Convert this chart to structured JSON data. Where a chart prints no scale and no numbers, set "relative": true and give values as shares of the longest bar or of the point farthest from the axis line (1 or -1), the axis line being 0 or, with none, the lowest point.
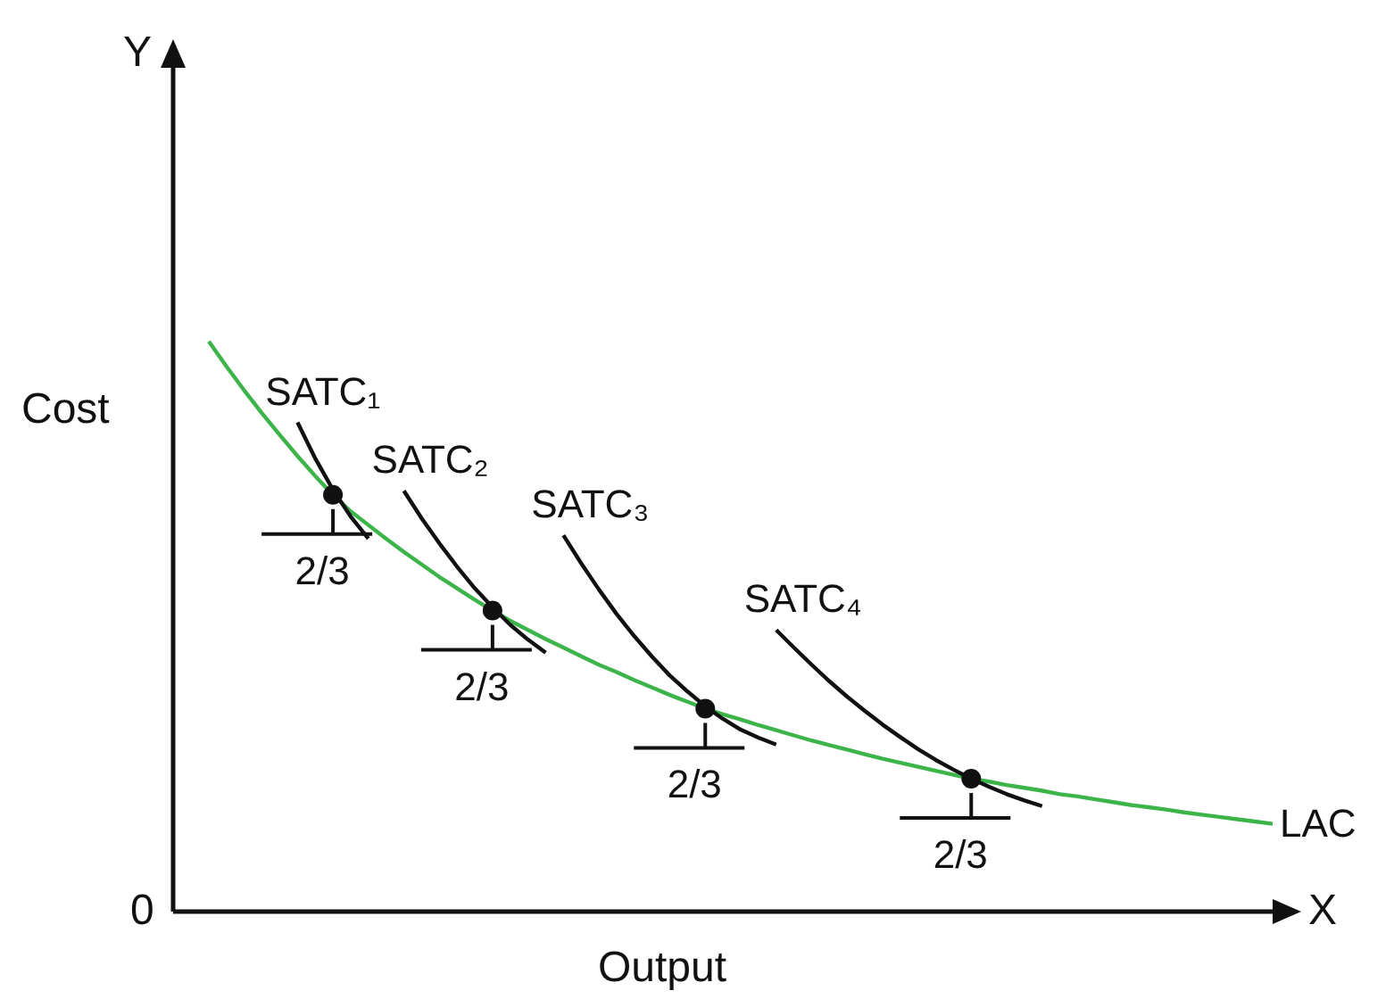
{
  "chart_data": {
    "type": "line",
    "relative": true,
    "xlabel": "Output",
    "ylabel": "Cost",
    "legend": false,
    "grid": false,
    "annotations": [
      "Y",
      "X",
      "0",
      "2/3",
      "2/3",
      "2/3",
      "2/3"
    ],
    "categories": [
      null,
      null,
      null,
      null,
      null,
      null,
      null,
      null,
      null,
      null,
      null,
      null,
      null,
      null,
      null,
      null,
      null,
      null,
      null,
      null,
      null,
      null,
      null,
      null,
      null,
      null,
      null,
      null,
      null,
      null,
      null,
      null,
      null,
      null,
      null,
      null,
      null,
      null,
      null,
      null,
      null,
      null,
      null,
      null,
      null,
      null,
      null,
      null,
      null,
      null,
      null,
      null,
      null,
      null,
      null,
      null,
      null,
      null,
      null,
      null,
      null
    ],
    "series": [
      {
        "name": "LAC",
        "color": "#3cb44a",
        "values": [
          1.0,
          0.956,
          0.914,
          0.874,
          0.836,
          0.799,
          0.764,
          0.731,
          0.702,
          0.678,
          0.654,
          0.631,
          0.609,
          0.587,
          0.567,
          0.547,
          0.528,
          0.51,
          0.494,
          0.478,
          0.463,
          0.448,
          0.433,
          0.42,
          0.406,
          0.393,
          0.38,
          0.368,
          0.356,
          0.346,
          0.337,
          0.327,
          0.318,
          0.309,
          0.3,
          0.292,
          0.284,
          0.276,
          0.268,
          0.261,
          0.254,
          0.247,
          0.24,
          0.233,
          0.228,
          0.222,
          0.217,
          0.212,
          0.206,
          0.202,
          0.197,
          0.192,
          0.187,
          0.183,
          0.179,
          0.174,
          0.17,
          0.166,
          0.162,
          0.158,
          0.154
        ]
      },
      {
        "name": "SATC₁",
        "color": "#111111",
        "values": [
          null,
          null,
          null,
          null,
          null,
          0.858,
          0.795,
          0.74,
          0.693,
          0.654,
          null,
          null,
          null,
          null,
          null,
          null,
          null,
          null,
          null,
          null,
          null,
          null,
          null,
          null,
          null,
          null,
          null,
          null,
          null,
          null,
          null,
          null,
          null,
          null,
          null,
          null,
          null,
          null,
          null,
          null,
          null,
          null,
          null,
          null,
          null,
          null,
          null,
          null,
          null,
          null,
          null,
          null,
          null,
          null,
          null,
          null,
          null,
          null,
          null,
          null,
          null
        ]
      },
      {
        "name": "SATC₂",
        "color": "#111111",
        "values": [
          null,
          null,
          null,
          null,
          null,
          null,
          null,
          null,
          null,
          null,
          null,
          0.738,
          0.69,
          0.646,
          0.605,
          0.567,
          0.534,
          0.503,
          0.477,
          0.454,
          null,
          null,
          null,
          null,
          null,
          null,
          null,
          null,
          null,
          null,
          null,
          null,
          null,
          null,
          null,
          null,
          null,
          null,
          null,
          null,
          null,
          null,
          null,
          null,
          null,
          null,
          null,
          null,
          null,
          null,
          null,
          null,
          null,
          null,
          null,
          null,
          null,
          null,
          null,
          null,
          null
        ]
      },
      {
        "name": "SATC₃",
        "color": "#111111",
        "values": [
          null,
          null,
          null,
          null,
          null,
          null,
          null,
          null,
          null,
          null,
          null,
          null,
          null,
          null,
          null,
          null,
          null,
          null,
          null,
          null,
          0.66,
          0.611,
          0.565,
          0.522,
          0.483,
          0.447,
          0.414,
          0.386,
          0.36,
          0.338,
          0.319,
          0.305,
          0.293,
          null,
          null,
          null,
          null,
          null,
          null,
          null,
          null,
          null,
          null,
          null,
          null,
          null,
          null,
          null,
          null,
          null,
          null,
          null,
          null,
          null,
          null,
          null,
          null,
          null,
          null,
          null,
          null
        ]
      },
      {
        "name": "SATC₄",
        "color": "#111111",
        "values": [
          null,
          null,
          null,
          null,
          null,
          null,
          null,
          null,
          null,
          null,
          null,
          null,
          null,
          null,
          null,
          null,
          null,
          null,
          null,
          null,
          null,
          null,
          null,
          null,
          null,
          null,
          null,
          null,
          null,
          null,
          null,
          null,
          0.494,
          0.463,
          0.433,
          0.404,
          0.377,
          0.352,
          0.328,
          0.306,
          0.285,
          0.266,
          0.249,
          0.233,
          0.219,
          0.206,
          0.195,
          0.185,
          null,
          null,
          null,
          null,
          null,
          null,
          null,
          null,
          null,
          null,
          null,
          null,
          null
        ]
      }
    ]
  }
}
